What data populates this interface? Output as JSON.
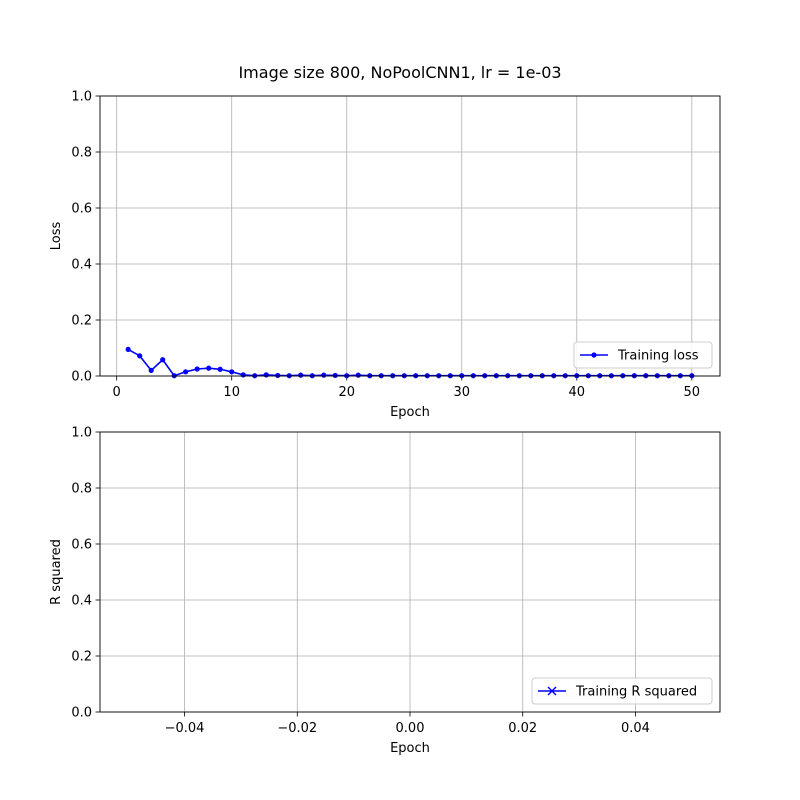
{
  "figure": {
    "title": "Image size 800, NoPoolCNN1, lr = 1e-03"
  },
  "chart_data": [
    {
      "type": "line",
      "xlabel": "Epoch",
      "ylabel": "Loss",
      "xlim": [
        -1.45,
        52.45
      ],
      "ylim": [
        0,
        1
      ],
      "xticks": [
        0,
        10,
        20,
        30,
        40,
        50
      ],
      "xtick_labels": [
        "0",
        "10",
        "20",
        "30",
        "40",
        "50"
      ],
      "yticks": [
        0,
        0.2,
        0.4,
        0.6,
        0.8,
        1.0
      ],
      "ytick_labels": [
        "0.0",
        "0.2",
        "0.4",
        "0.6",
        "0.8",
        "1.0"
      ],
      "grid": true,
      "legend_position": "lower-right",
      "series": [
        {
          "name": "Training loss",
          "color": "#0000ff",
          "marker": "dot",
          "x": [
            1,
            2,
            3,
            4,
            5,
            6,
            7,
            8,
            9,
            10,
            11,
            12,
            13,
            14,
            15,
            16,
            17,
            18,
            19,
            20,
            21,
            22,
            23,
            24,
            25,
            26,
            27,
            28,
            29,
            30,
            31,
            32,
            33,
            34,
            35,
            36,
            37,
            38,
            39,
            40,
            41,
            42,
            43,
            44,
            45,
            46,
            47,
            48,
            49,
            50
          ],
          "y": [
            0.095,
            0.072,
            0.02,
            0.058,
            0.001,
            0.015,
            0.025,
            0.028,
            0.024,
            0.015,
            0.004,
            0.001,
            0.004,
            0.002,
            0.001,
            0.003,
            0.001,
            0.003,
            0.002,
            0.001,
            0.003,
            0.001,
            0.001,
            0.001,
            0.001,
            0.001,
            0.001,
            0.001,
            0.001,
            0.001,
            0.001,
            0.001,
            0.001,
            0.001,
            0.001,
            0.001,
            0.001,
            0.001,
            0.001,
            0.001,
            0.001,
            0.001,
            0.001,
            0.001,
            0.001,
            0.001,
            0.001,
            0.001,
            0.001,
            0.001
          ]
        }
      ]
    },
    {
      "type": "line",
      "xlabel": "Epoch",
      "ylabel": "R squared",
      "xlim": [
        -0.055,
        0.055
      ],
      "ylim": [
        0,
        1
      ],
      "xticks": [
        -0.04,
        -0.02,
        0.0,
        0.02,
        0.04
      ],
      "xtick_labels": [
        "−0.04",
        "−0.02",
        "0.00",
        "0.02",
        "0.04"
      ],
      "yticks": [
        0,
        0.2,
        0.4,
        0.6,
        0.8,
        1.0
      ],
      "ytick_labels": [
        "0.0",
        "0.2",
        "0.4",
        "0.6",
        "0.8",
        "1.0"
      ],
      "grid": true,
      "legend_position": "lower-right",
      "series": [
        {
          "name": "Training R squared",
          "color": "#0000ff",
          "marker": "x",
          "x": [],
          "y": []
        }
      ]
    }
  ]
}
